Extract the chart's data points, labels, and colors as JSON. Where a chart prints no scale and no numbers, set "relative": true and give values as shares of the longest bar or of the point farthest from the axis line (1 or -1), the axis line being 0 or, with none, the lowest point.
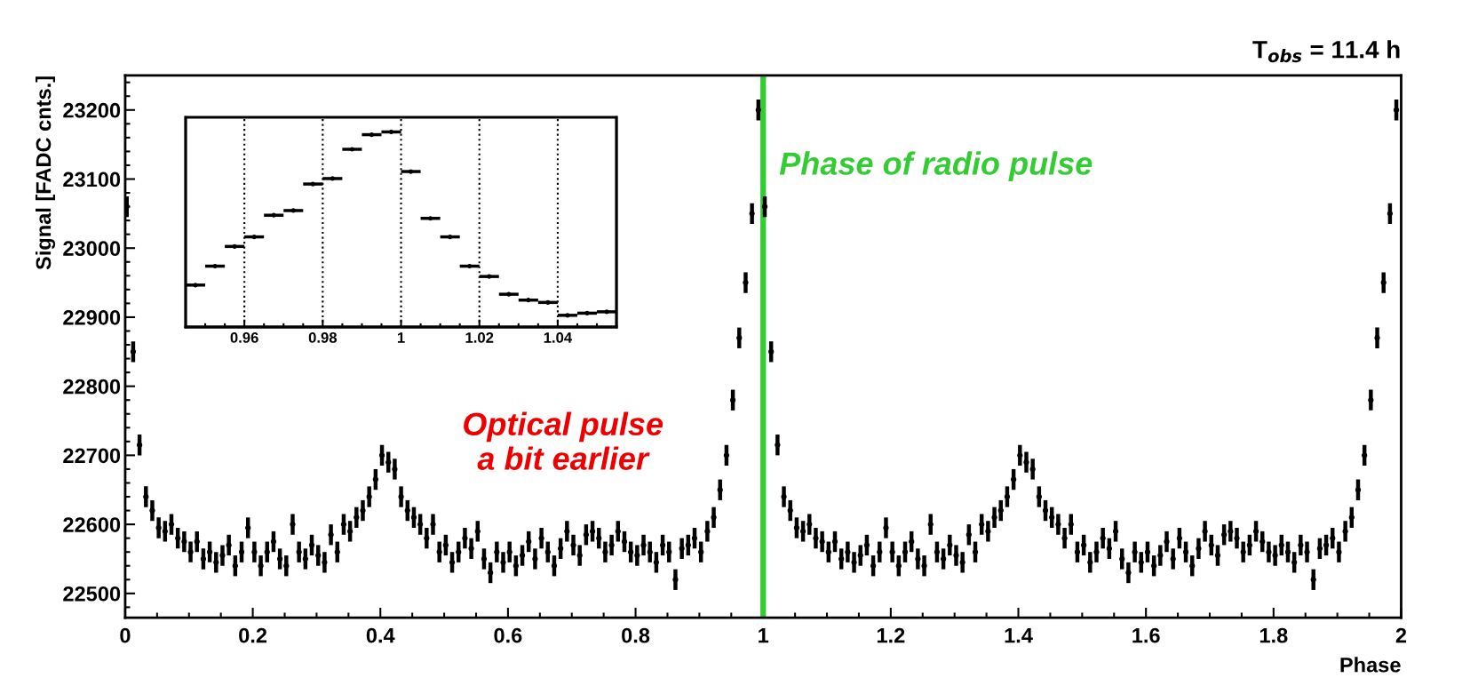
{
  "chart_data": [
    {
      "type": "scatter",
      "title": "T$_{obs}$ = 11.4 h",
      "xlabel": "Phase",
      "ylabel": "Signal [FADC cnts.]",
      "xlim": [
        0,
        2
      ],
      "ylim": [
        22465,
        23250
      ],
      "xticks": [
        0,
        0.2,
        0.4,
        0.6,
        0.8,
        1,
        1.2,
        1.4,
        1.6,
        1.8,
        2
      ],
      "yticks": [
        22500,
        22600,
        22700,
        22800,
        22900,
        23000,
        23100,
        23200
      ],
      "marker": "circle",
      "grid": false,
      "ref_lines": [
        {
          "axis": "x",
          "value": 1,
          "label": "Phase of radio pulse",
          "color": "#33cc33"
        }
      ],
      "annotations": [
        "Optical pulse\na bit earlier"
      ],
      "series": [
        {
          "color": "#000000",
          "x": [
            0.0025,
            0.0125,
            0.0225,
            0.0325,
            0.0425,
            0.0525,
            0.0625,
            0.0725,
            0.0825,
            0.0925,
            0.1025,
            0.1125,
            0.1225,
            0.1325,
            0.1425,
            0.1525,
            0.1625,
            0.1725,
            0.1825,
            0.1925,
            0.2025,
            0.2125,
            0.2225,
            0.2325,
            0.2425,
            0.2525,
            0.2625,
            0.2725,
            0.2825,
            0.2925,
            0.3025,
            0.3125,
            0.3225,
            0.3325,
            0.3425,
            0.3525,
            0.3625,
            0.3725,
            0.3825,
            0.3925,
            0.4025,
            0.4125,
            0.4225,
            0.4325,
            0.4425,
            0.4525,
            0.4625,
            0.4725,
            0.4825,
            0.4925,
            0.5025,
            0.5125,
            0.5225,
            0.5325,
            0.5425,
            0.5525,
            0.5625,
            0.5725,
            0.5825,
            0.5925,
            0.6025,
            0.6125,
            0.6225,
            0.6325,
            0.6425,
            0.6525,
            0.6625,
            0.6725,
            0.6825,
            0.6925,
            0.7025,
            0.7125,
            0.7225,
            0.7325,
            0.7425,
            0.7525,
            0.7625,
            0.7725,
            0.7825,
            0.7925,
            0.8025,
            0.8125,
            0.8225,
            0.8325,
            0.8425,
            0.8525,
            0.8625,
            0.8725,
            0.8825,
            0.8925,
            0.9025,
            0.9125,
            0.9225,
            0.9325,
            0.9425,
            0.9525,
            0.9625,
            0.9725,
            0.9825,
            0.9925,
            1.0025,
            1.0125,
            1.0225,
            1.0325,
            1.0425,
            1.0525,
            1.0625,
            1.0725,
            1.0825,
            1.0925,
            1.1025,
            1.1125,
            1.1225,
            1.1325,
            1.1425,
            1.1525,
            1.1625,
            1.1725,
            1.1825,
            1.1925,
            1.2025,
            1.2125,
            1.2225,
            1.2325,
            1.2425,
            1.2525,
            1.2625,
            1.2725,
            1.2825,
            1.2925,
            1.3025,
            1.3125,
            1.3225,
            1.3325,
            1.3425,
            1.3525,
            1.3625,
            1.3725,
            1.3825,
            1.3925,
            1.4025,
            1.4125,
            1.4225,
            1.4325,
            1.4425,
            1.4525,
            1.4625,
            1.4725,
            1.4825,
            1.4925,
            1.5025,
            1.5125,
            1.5225,
            1.5325,
            1.5425,
            1.5525,
            1.5625,
            1.5725,
            1.5825,
            1.5925,
            1.6025,
            1.6125,
            1.6225,
            1.6325,
            1.6425,
            1.6525,
            1.6625,
            1.6725,
            1.6825,
            1.6925,
            1.7025,
            1.7125,
            1.7225,
            1.7325,
            1.7425,
            1.7525,
            1.7625,
            1.7725,
            1.7825,
            1.7925,
            1.8025,
            1.8125,
            1.8225,
            1.8325,
            1.8425,
            1.8525,
            1.8625,
            1.8725,
            1.8825,
            1.8925,
            1.9025,
            1.9125,
            1.9225,
            1.9325,
            1.9425,
            1.9525,
            1.9625,
            1.9725,
            1.9825,
            1.9925
          ],
          "values": [
            23060,
            22850,
            22715,
            22640,
            22620,
            22595,
            22590,
            22600,
            22580,
            22575,
            22560,
            22575,
            22550,
            22560,
            22545,
            22555,
            22570,
            22540,
            22560,
            22595,
            22560,
            22540,
            22560,
            22575,
            22550,
            22540,
            22600,
            22560,
            22550,
            22570,
            22555,
            22545,
            22585,
            22560,
            22600,
            22590,
            22610,
            22620,
            22640,
            22665,
            22700,
            22690,
            22680,
            22640,
            22620,
            22610,
            22600,
            22580,
            22600,
            22560,
            22570,
            22545,
            22560,
            22580,
            22565,
            22590,
            22550,
            22530,
            22560,
            22545,
            22560,
            22540,
            22555,
            22575,
            22550,
            22580,
            22560,
            22540,
            22565,
            22590,
            22570,
            22555,
            22585,
            22590,
            22580,
            22560,
            22570,
            22590,
            22575,
            22560,
            22555,
            22570,
            22560,
            22545,
            22570,
            22560,
            22520,
            22565,
            22570,
            22580,
            22560,
            22590,
            22610,
            22650,
            22700,
            22780,
            22870,
            22950,
            23050,
            23200,
            23060,
            22850,
            22715,
            22640,
            22620,
            22595,
            22590,
            22600,
            22580,
            22575,
            22560,
            22575,
            22550,
            22560,
            22545,
            22555,
            22570,
            22540,
            22560,
            22595,
            22560,
            22540,
            22560,
            22575,
            22550,
            22540,
            22600,
            22560,
            22550,
            22570,
            22555,
            22545,
            22585,
            22560,
            22600,
            22590,
            22610,
            22620,
            22640,
            22665,
            22700,
            22690,
            22680,
            22640,
            22620,
            22610,
            22600,
            22580,
            22600,
            22560,
            22570,
            22545,
            22560,
            22580,
            22565,
            22590,
            22550,
            22530,
            22560,
            22545,
            22560,
            22540,
            22555,
            22575,
            22550,
            22580,
            22560,
            22540,
            22565,
            22590,
            22570,
            22555,
            22585,
            22590,
            22580,
            22560,
            22570,
            22590,
            22575,
            22560,
            22555,
            22570,
            22560,
            22545,
            22570,
            22560,
            22520,
            22565,
            22570,
            22580,
            22560,
            22590,
            22610,
            22650,
            22700,
            22780,
            22870,
            22950,
            23050,
            23200
          ],
          "errors": [
            15,
            15,
            15,
            15,
            15,
            15,
            15,
            15,
            15,
            15,
            15,
            15,
            15,
            15,
            15,
            15,
            15,
            15,
            15,
            15,
            15,
            15,
            15,
            15,
            15,
            15,
            15,
            15,
            15,
            15,
            15,
            15,
            15,
            15,
            15,
            15,
            15,
            15,
            15,
            15,
            15,
            15,
            15,
            15,
            15,
            15,
            15,
            15,
            15,
            15,
            15,
            15,
            15,
            15,
            15,
            15,
            15,
            15,
            15,
            15,
            15,
            15,
            15,
            15,
            15,
            15,
            15,
            15,
            15,
            15,
            15,
            15,
            15,
            15,
            15,
            15,
            15,
            15,
            15,
            15,
            15,
            15,
            15,
            15,
            15,
            15,
            15,
            15,
            15,
            15,
            15,
            15,
            15,
            15,
            15,
            15,
            15,
            15,
            15,
            15,
            15,
            15,
            15,
            15,
            15,
            15,
            15,
            15,
            15,
            15,
            15,
            15,
            15,
            15,
            15,
            15,
            15,
            15,
            15,
            15,
            15,
            15,
            15,
            15,
            15,
            15,
            15,
            15,
            15,
            15,
            15,
            15,
            15,
            15,
            15,
            15,
            15,
            15,
            15,
            15,
            15,
            15,
            15,
            15,
            15,
            15,
            15,
            15,
            15,
            15,
            15,
            15,
            15,
            15,
            15,
            15,
            15,
            15,
            15,
            15,
            15,
            15,
            15,
            15,
            15,
            15,
            15,
            15,
            15,
            15,
            15,
            15,
            15,
            15,
            15,
            15,
            15,
            15,
            15,
            15,
            15,
            15,
            15,
            15,
            15,
            15,
            15,
            15,
            15,
            15,
            15,
            15,
            15,
            15,
            15,
            15,
            15,
            15,
            15,
            15
          ]
        }
      ]
    },
    {
      "type": "scatter",
      "relative": true,
      "tick_labels": "x",
      "grid": "x",
      "marker": "circle",
      "xlim": [
        0.945,
        1.055
      ],
      "xticks": [
        0.96,
        0.98,
        1,
        1.02,
        1.04
      ],
      "series": [
        {
          "color": "#000000",
          "x": [
            0.9475,
            0.9525,
            0.9575,
            0.9625,
            0.9675,
            0.9725,
            0.9775,
            0.9825,
            0.9875,
            0.9925,
            0.9975,
            1.0025,
            1.0075,
            1.0125,
            1.0175,
            1.0225,
            1.0275,
            1.0325,
            1.0375,
            1.0425,
            1.0475,
            1.0525
          ],
          "values": [
            0.215,
            0.312,
            0.413,
            0.462,
            0.573,
            0.597,
            0.733,
            0.761,
            0.911,
            0.986,
            1.0,
            0.797,
            0.557,
            0.462,
            0.312,
            0.259,
            0.168,
            0.138,
            0.126,
            0.06,
            0.071,
            0.078
          ],
          "xerrors": [
            0.0025,
            0.0025,
            0.0025,
            0.0025,
            0.0025,
            0.0025,
            0.0025,
            0.0025,
            0.0025,
            0.0025,
            0.0025,
            0.0025,
            0.0025,
            0.0025,
            0.0025,
            0.0025,
            0.0025,
            0.0025,
            0.0025,
            0.0025,
            0.0025,
            0.0025
          ]
        }
      ]
    }
  ]
}
